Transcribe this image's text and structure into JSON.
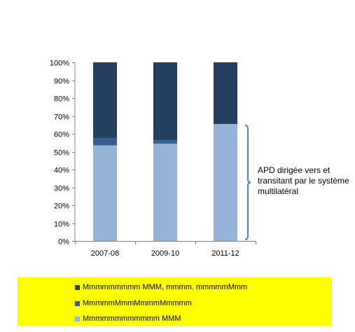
{
  "chart_data": {
    "type": "bar",
    "stacked": true,
    "categories": [
      "2007-08",
      "2009-10",
      "2011-12"
    ],
    "series": [
      {
        "name": "Mmmmmmmmmmmm MMM",
        "values": [
          53.5,
          54.5,
          65.5
        ],
        "color": "#95b3d7"
      },
      {
        "name": "MmmmmMmmMmmmMmmmm",
        "values": [
          4,
          2,
          0
        ],
        "color": "#366092"
      },
      {
        "name": "Mmmmmmmmm MMM, mmmm. mmmmmMmm",
        "values": [
          42.5,
          43.5,
          34.5
        ],
        "color": "#243f60"
      }
    ],
    "y_ticks": [
      "0%",
      "10%",
      "20%",
      "30%",
      "40%",
      "50%",
      "60%",
      "70%",
      "80%",
      "90%",
      "100%"
    ],
    "ylim": [
      0,
      100
    ],
    "y_unit": "%",
    "grid": false,
    "legend_position": "bottom",
    "legend_order": [
      2,
      1,
      0
    ],
    "legend_background": "#ffff00",
    "annotation": {
      "text": "APD dirigée vers et transitant par le système multilatéral",
      "bracket_range": [
        0,
        65.5
      ],
      "bracket_color": "#4f81bd"
    }
  }
}
